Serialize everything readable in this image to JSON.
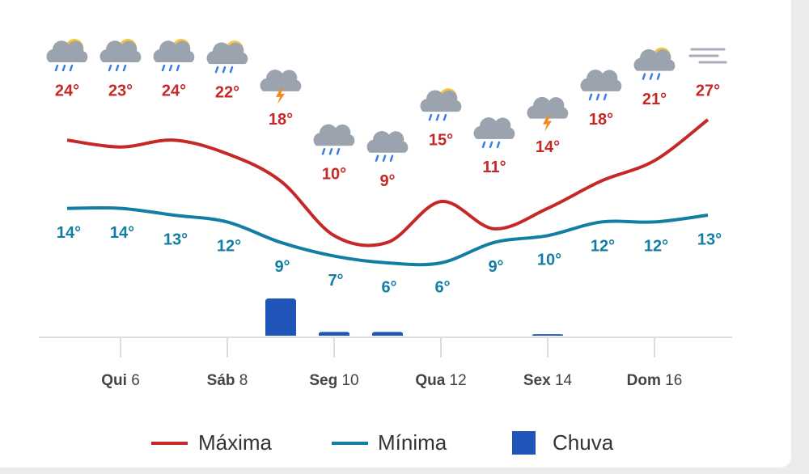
{
  "chart_data": {
    "type": "line",
    "categories": [
      null,
      "Qui 6",
      null,
      "Sáb 8",
      null,
      "Seg 10",
      null,
      "Qua 12",
      null,
      "Sex 14",
      null,
      "Dom 16",
      null
    ],
    "series": [
      {
        "name": "Máxima",
        "color": "#c62828",
        "values": [
          24,
          23,
          24,
          22,
          18,
          10,
          9,
          15,
          11,
          14,
          18,
          21,
          27
        ],
        "value_labels": [
          "24°",
          "23°",
          "24°",
          "22°",
          "18°",
          "10°",
          "9°",
          "15°",
          "11°",
          "14°",
          "18°",
          "21°",
          "27°"
        ]
      },
      {
        "name": "Mínima",
        "color": "#137ea3",
        "values": [
          14,
          14,
          13,
          12,
          9,
          7,
          6,
          6,
          9,
          10,
          12,
          12,
          13
        ],
        "value_labels": [
          "14°",
          "14°",
          "13°",
          "12°",
          "9°",
          "7°",
          "6°",
          "6°",
          "9°",
          "10°",
          "12°",
          "12°",
          "13°"
        ]
      },
      {
        "name": "Chuva",
        "type": "bar",
        "color": "#1f55b8",
        "values": [
          0,
          0,
          0,
          0,
          10,
          1,
          1,
          0,
          0,
          0.4,
          0,
          0,
          0
        ]
      }
    ]
  }
}
